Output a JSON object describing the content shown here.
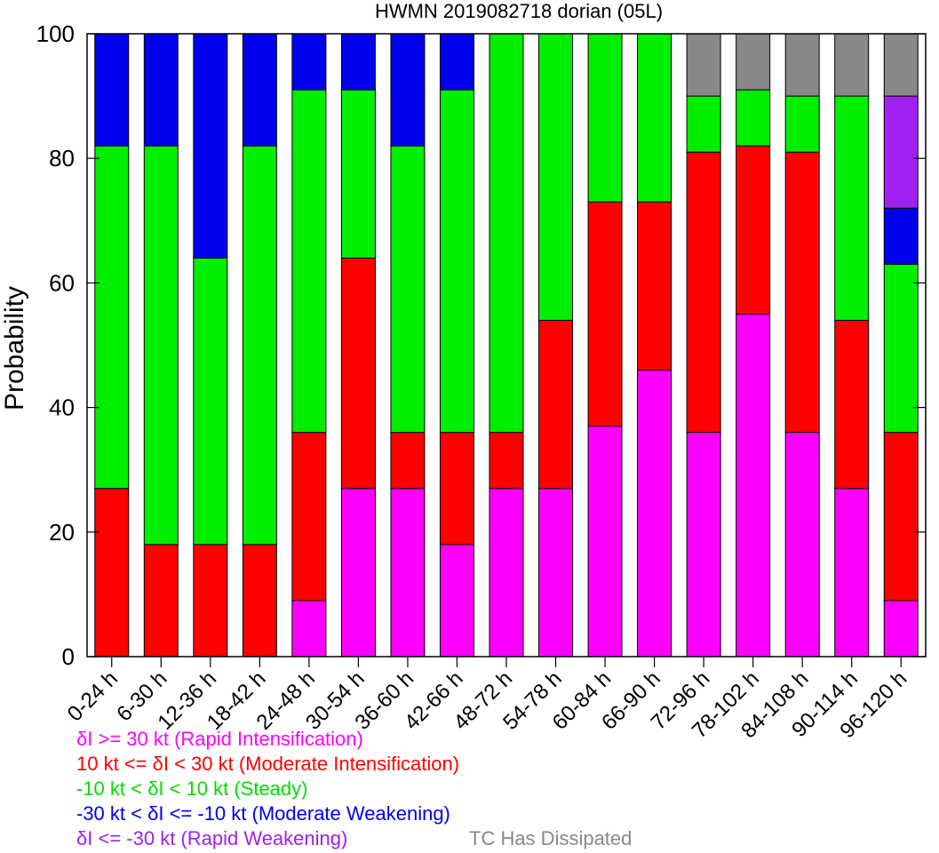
{
  "chart_data": {
    "type": "bar",
    "stacked": true,
    "title": "HWMN 2019082718 dorian (05L)",
    "ylabel": "Probability",
    "xlabel": "",
    "ylim": [
      0,
      100
    ],
    "yticks": [
      0,
      20,
      40,
      60,
      80,
      100
    ],
    "categories": [
      "0-24 h",
      "6-30 h",
      "12-36 h",
      "18-42 h",
      "24-48 h",
      "30-54 h",
      "36-60 h",
      "42-66 h",
      "48-72 h",
      "54-78 h",
      "60-84 h",
      "66-90 h",
      "72-96 h",
      "78-102 h",
      "84-108 h",
      "90-114 h",
      "96-120 h"
    ],
    "series": [
      {
        "name": "Rapid Intensification",
        "color": "#ff00ff",
        "values": [
          0,
          0,
          0,
          0,
          9,
          27,
          27,
          18,
          27,
          27,
          37,
          46,
          36,
          55,
          36,
          27,
          9
        ]
      },
      {
        "name": "Moderate Intensification",
        "color": "#ff0000",
        "values": [
          27,
          18,
          18,
          18,
          27,
          37,
          9,
          18,
          9,
          27,
          36,
          27,
          45,
          27,
          45,
          27,
          27
        ]
      },
      {
        "name": "Steady",
        "color": "#00ee00",
        "values": [
          55,
          64,
          46,
          64,
          55,
          27,
          46,
          55,
          64,
          46,
          27,
          27,
          9,
          9,
          9,
          36,
          27
        ]
      },
      {
        "name": "Moderate Weakening",
        "color": "#0000ee",
        "values": [
          18,
          18,
          36,
          18,
          9,
          9,
          18,
          9,
          0,
          0,
          0,
          0,
          0,
          0,
          0,
          0,
          9
        ]
      },
      {
        "name": "Rapid Weakening",
        "color": "#a020f0",
        "values": [
          0,
          0,
          0,
          0,
          0,
          0,
          0,
          0,
          0,
          0,
          0,
          0,
          0,
          0,
          0,
          0,
          18
        ]
      },
      {
        "name": "TC Has Dissipated",
        "color": "#888888",
        "values": [
          0,
          0,
          0,
          0,
          0,
          0,
          0,
          0,
          0,
          0,
          0,
          0,
          10,
          9,
          10,
          10,
          10
        ]
      }
    ],
    "grid": false
  },
  "legend": {
    "items": [
      {
        "text": "δI >= 30 kt (Rapid Intensification)",
        "color": "#ff00ff"
      },
      {
        "text": "10 kt <= δI < 30 kt (Moderate Intensification)",
        "color": "#ff0000"
      },
      {
        "text": "-10 kt < δI < 10 kt (Steady)",
        "color": "#00dd00"
      },
      {
        "text": "-30 kt < δI <= -10 kt (Moderate Weakening)",
        "color": "#0000ee"
      },
      {
        "text": "δI <= -30 kt (Rapid Weakening)",
        "color": "#a020f0"
      }
    ],
    "dissipated": {
      "text": "TC Has Dissipated",
      "color": "#888888"
    }
  }
}
